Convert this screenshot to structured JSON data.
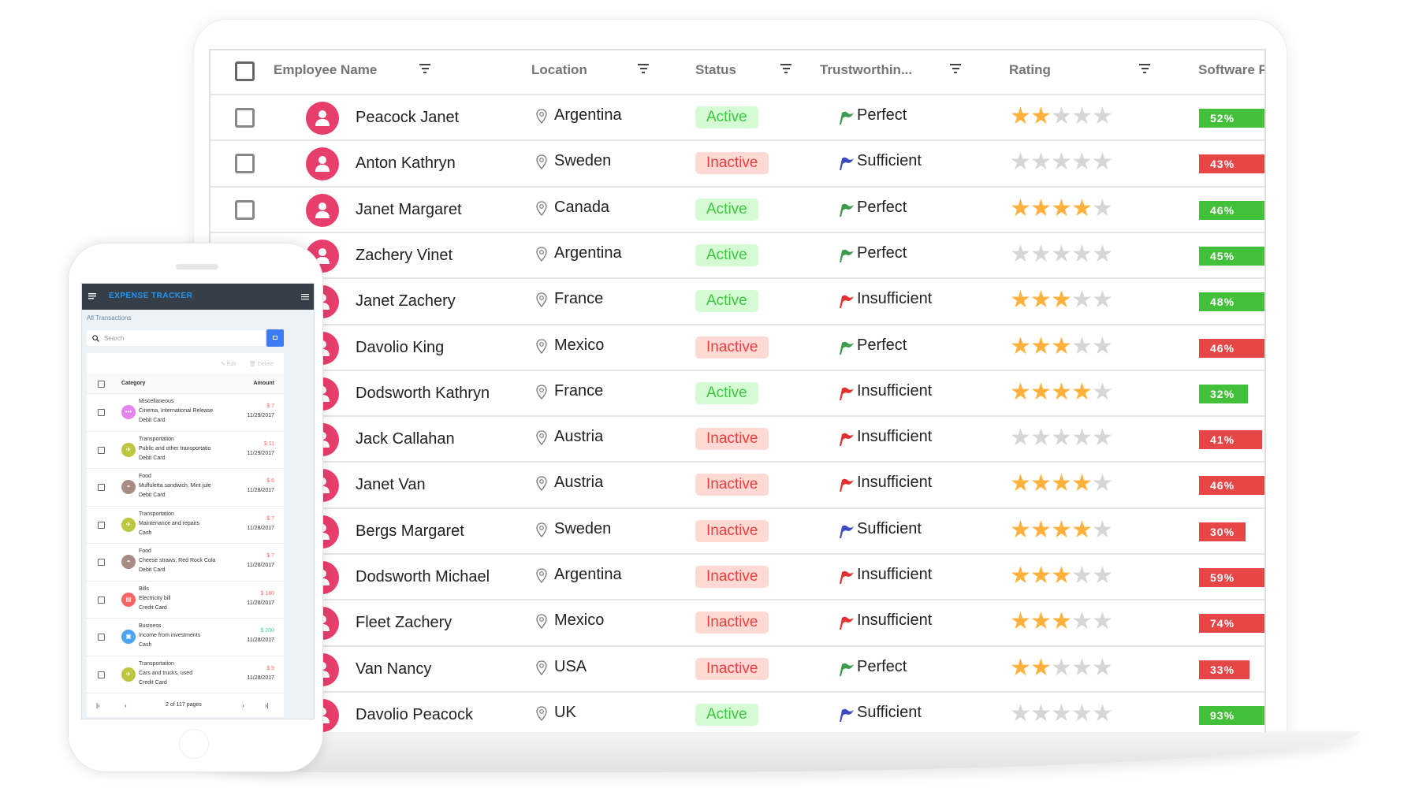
{
  "colors": {
    "avatar": "#e83e6c",
    "active_bg": "#d4fbd4",
    "active_text": "#3cc83c",
    "inactive_bg": "#ffdad4",
    "inactive_text": "#f03c3c",
    "bar_green": "#42c03a",
    "bar_red": "#e64646",
    "star_on": "#ffb13c",
    "star_off": "#d6d6d6",
    "flag_perfect": "#3c9a4c",
    "flag_sufficient": "#3c4cc0",
    "flag_insufficient": "#e03030"
  },
  "grid": {
    "columns": [
      "Employee Name",
      "Location",
      "Status",
      "Trustworthin...",
      "Rating",
      "Software P"
    ],
    "rows": [
      {
        "name": "Peacock Janet",
        "location": "Argentina",
        "status": "Active",
        "trust": "Perfect",
        "rating": 2,
        "software": 52,
        "software_label": "52%"
      },
      {
        "name": "Anton Kathryn",
        "location": "Sweden",
        "status": "Inactive",
        "trust": "Sufficient",
        "rating": 0,
        "software": 43,
        "software_label": "43%"
      },
      {
        "name": "Janet Margaret",
        "location": "Canada",
        "status": "Active",
        "trust": "Perfect",
        "rating": 4,
        "software": 46,
        "software_label": "46%"
      },
      {
        "name": "Zachery Vinet",
        "location": "Argentina",
        "status": "Active",
        "trust": "Perfect",
        "rating": 0,
        "software": 45,
        "software_label": "45%"
      },
      {
        "name": "Janet Zachery",
        "location": "France",
        "status": "Active",
        "trust": "Insufficient",
        "rating": 3,
        "software": 48,
        "software_label": "48%"
      },
      {
        "name": "Davolio King",
        "location": "Mexico",
        "status": "Inactive",
        "trust": "Perfect",
        "rating": 3,
        "software": 46,
        "software_label": "46%"
      },
      {
        "name": "Dodsworth Kathryn",
        "location": "France",
        "status": "Active",
        "trust": "Insufficient",
        "rating": 4,
        "software": 32,
        "software_label": "32%"
      },
      {
        "name": "Jack Callahan",
        "location": "Austria",
        "status": "Inactive",
        "trust": "Insufficient",
        "rating": 0,
        "software": 41,
        "software_label": "41%"
      },
      {
        "name": "Janet Van",
        "location": "Austria",
        "status": "Inactive",
        "trust": "Insufficient",
        "rating": 4,
        "software": 46,
        "software_label": "46%"
      },
      {
        "name": "Bergs Margaret",
        "location": "Sweden",
        "status": "Inactive",
        "trust": "Sufficient",
        "rating": 4,
        "software": 30,
        "software_label": "30%"
      },
      {
        "name": "Dodsworth Michael",
        "location": "Argentina",
        "status": "Inactive",
        "trust": "Insufficient",
        "rating": 3,
        "software": 59,
        "software_label": "59%"
      },
      {
        "name": "Fleet Zachery",
        "location": "Mexico",
        "status": "Inactive",
        "trust": "Insufficient",
        "rating": 3,
        "software": 74,
        "software_label": "74%"
      },
      {
        "name": "Van Nancy",
        "location": "USA",
        "status": "Inactive",
        "trust": "Perfect",
        "rating": 2,
        "software": 33,
        "software_label": "33%"
      },
      {
        "name": "Davolio Peacock",
        "location": "UK",
        "status": "Active",
        "trust": "Sufficient",
        "rating": 0,
        "software": 93,
        "software_label": "93%"
      }
    ]
  },
  "phone": {
    "title": "EXPENSE TRACKER",
    "subtitle": "All Transactions",
    "search_placeholder": "Search",
    "edit_label": "Edit",
    "delete_label": "Delete",
    "col_category": "Category",
    "col_amount": "Amount",
    "pager_text": "2 of 117 pages",
    "items": [
      {
        "category": "Miscellaneous",
        "desc": "Cinema, International Release",
        "payment": "Debit Card",
        "amount": "$ 7",
        "date": "11/29/2017",
        "icon": "dots-icon",
        "icon_color": "#e384f0",
        "income": false
      },
      {
        "category": "Transportation",
        "desc": "Public and other transportatio",
        "payment": "Debit Card",
        "amount": "$ 11",
        "date": "11/29/2017",
        "icon": "plane-icon",
        "icon_color": "#bcc63e",
        "income": false
      },
      {
        "category": "Food",
        "desc": "Muffuletta sandwich, Mint jule",
        "payment": "Debit Card",
        "amount": "$ 6",
        "date": "11/28/2017",
        "icon": "food-icon",
        "icon_color": "#a88c84",
        "income": false
      },
      {
        "category": "Transportation",
        "desc": "Maintenance and repairs",
        "payment": "Cash",
        "amount": "$ 7",
        "date": "11/28/2017",
        "icon": "plane-icon",
        "icon_color": "#bcc63e",
        "income": false
      },
      {
        "category": "Food",
        "desc": "Cheese straws, Red Rock Cola",
        "payment": "Debit Card",
        "amount": "$ 7",
        "date": "11/28/2017",
        "icon": "food-icon",
        "icon_color": "#a88c84",
        "income": false
      },
      {
        "category": "Bills",
        "desc": "Electricity bill",
        "payment": "Credit Card",
        "amount": "$ 180",
        "date": "11/28/2017",
        "icon": "bill-icon",
        "icon_color": "#f86464",
        "income": false
      },
      {
        "category": "Business",
        "desc": "Income from investments",
        "payment": "Cash",
        "amount": "$ 200",
        "date": "11/28/2017",
        "icon": "briefcase-icon",
        "icon_color": "#4aa3f5",
        "income": true
      },
      {
        "category": "Transportation",
        "desc": "Cars and trucks, used",
        "payment": "Credit Card",
        "amount": "$ 9",
        "date": "11/28/2017",
        "icon": "plane-icon",
        "icon_color": "#bcc63e",
        "income": false
      }
    ]
  }
}
